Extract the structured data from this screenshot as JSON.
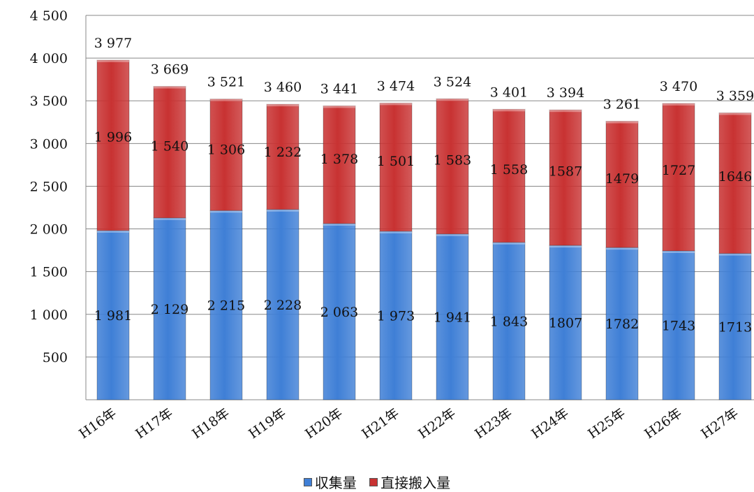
{
  "chart_data": {
    "type": "bar",
    "stacked": true,
    "categories": [
      "H16年",
      "H17年",
      "H18年",
      "H19年",
      "H20年",
      "H21年",
      "H22年",
      "H23年",
      "H24年",
      "H25年",
      "H26年",
      "H27年"
    ],
    "series": [
      {
        "name": "収集量",
        "color": "#3f7fd6",
        "values": [
          1981,
          2129,
          2215,
          2228,
          2063,
          1973,
          1941,
          1843,
          1807,
          1782,
          1743,
          1713
        ],
        "labels": [
          "1 981",
          "2 129",
          "2 215",
          "2 228",
          "2 063",
          "1 973",
          "1 941",
          "1 843",
          "1807",
          "1782",
          "1743",
          "1713"
        ]
      },
      {
        "name": "直接搬入量",
        "color": "#c83232",
        "values": [
          1996,
          1540,
          1306,
          1232,
          1378,
          1501,
          1583,
          1558,
          1587,
          1479,
          1727,
          1646
        ],
        "labels": [
          "1 996",
          "1 540",
          "1 306",
          "1 232",
          "1 378",
          "1 501",
          "1 583",
          "1 558",
          "1587",
          "1479",
          "1727",
          "1646"
        ]
      }
    ],
    "totals": [
      3977,
      3669,
      3521,
      3460,
      3441,
      3474,
      3524,
      3401,
      3394,
      3261,
      3470,
      3359
    ],
    "total_labels": [
      "3 977",
      "3 669",
      "3 521",
      "3 460",
      "3 441",
      "3 474",
      "3 524",
      "3 401",
      "3 394",
      "3 261",
      "3 470",
      "3 359"
    ],
    "ylim": [
      0,
      4500
    ],
    "yticks": [
      500,
      1000,
      1500,
      2000,
      2500,
      3000,
      3500,
      4000,
      4500
    ],
    "ytick_labels": [
      "500",
      "1 000",
      "1 500",
      "2 000",
      "2 500",
      "3 000",
      "3 500",
      "4 000",
      "4 500"
    ],
    "grid": true,
    "legend_position": "bottom"
  }
}
